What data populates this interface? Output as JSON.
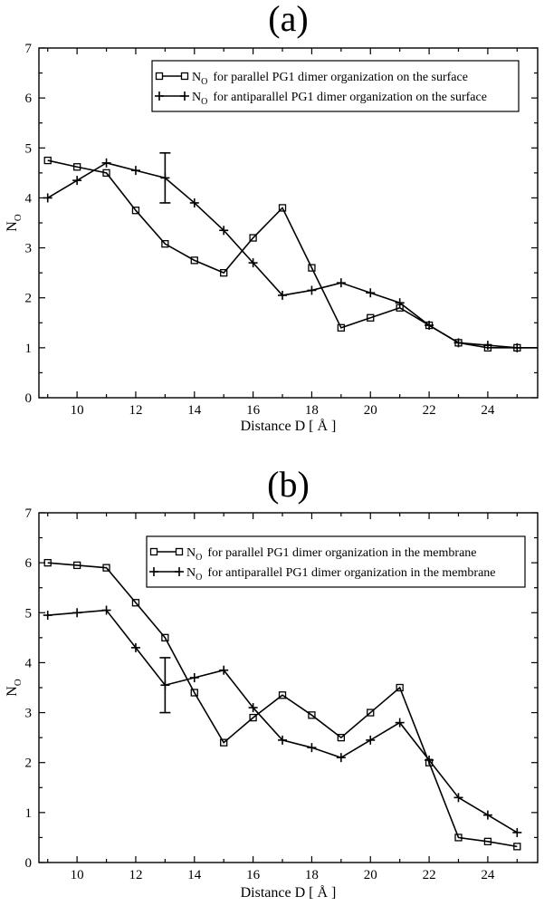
{
  "chart_data": [
    {
      "type": "line",
      "panel": "(a)",
      "xlabel": "Distance D [ Å ]",
      "ylabel": "NO",
      "ylabel_main": "N",
      "ylabel_sub": "O",
      "xlim": [
        8.7,
        25.7
      ],
      "ylim": [
        0,
        7
      ],
      "xticks": [
        10,
        12,
        14,
        16,
        18,
        20,
        22,
        24
      ],
      "yticks": [
        0,
        1,
        2,
        3,
        4,
        5,
        6,
        7
      ],
      "legend_position": "top-right",
      "series": [
        {
          "name": "NO for parallel PG1 dimer organization on the surface",
          "label_main": "N",
          "label_sub": "O",
          "label_rest": "for parallel PG1 dimer organization on the surface",
          "marker": "square",
          "x": [
            9,
            10,
            11,
            12,
            13,
            14,
            15,
            16,
            17,
            18,
            19,
            20,
            21,
            22,
            23,
            24,
            25,
            25.7
          ],
          "y": [
            4.75,
            4.62,
            4.5,
            3.75,
            3.08,
            2.75,
            2.5,
            3.2,
            3.8,
            2.6,
            1.4,
            1.6,
            1.8,
            1.45,
            1.1,
            1.0,
            1.0,
            1.0
          ],
          "marked": [
            true,
            true,
            true,
            true,
            true,
            true,
            true,
            true,
            true,
            true,
            true,
            true,
            true,
            true,
            true,
            true,
            true,
            false
          ]
        },
        {
          "name": "NO for antiparallel PG1 dimer organization on the surface",
          "label_main": "N",
          "label_sub": "O",
          "label_rest": "for antiparallel PG1 dimer organization on the surface",
          "marker": "plus",
          "x": [
            9,
            10,
            11,
            12,
            13,
            14,
            15,
            16,
            17,
            18,
            19,
            20,
            21,
            22,
            23,
            24,
            25,
            25.7
          ],
          "y": [
            4.0,
            4.35,
            4.7,
            4.55,
            4.4,
            3.9,
            3.35,
            2.7,
            2.05,
            2.15,
            2.3,
            2.1,
            1.9,
            1.45,
            1.1,
            1.05,
            1.0,
            1.0
          ],
          "marked": [
            true,
            true,
            true,
            true,
            true,
            true,
            true,
            true,
            true,
            true,
            true,
            true,
            true,
            true,
            true,
            true,
            true,
            false
          ]
        }
      ],
      "error_bar": {
        "x": 13,
        "y": 4.4,
        "low": 3.9,
        "high": 4.9
      }
    },
    {
      "type": "line",
      "panel": "(b)",
      "xlabel": "Distance D [ Å ]",
      "ylabel": "NO",
      "ylabel_main": "N",
      "ylabel_sub": "O",
      "xlim": [
        8.7,
        25.7
      ],
      "ylim": [
        0,
        7
      ],
      "xticks": [
        10,
        12,
        14,
        16,
        18,
        20,
        22,
        24
      ],
      "yticks": [
        0,
        1,
        2,
        3,
        4,
        5,
        6,
        7
      ],
      "legend_position": "top-right",
      "series": [
        {
          "name": "NO for parallel PG1 dimer organization in the membrane",
          "label_main": "N",
          "label_sub": "O",
          "label_rest": "for parallel PG1 dimer organization in the membrane",
          "marker": "square",
          "x": [
            9,
            10,
            11,
            12,
            13,
            14,
            15,
            16,
            17,
            18,
            19,
            20,
            21,
            22,
            23,
            24,
            25
          ],
          "y": [
            6.0,
            5.95,
            5.9,
            5.2,
            4.5,
            3.4,
            2.4,
            2.9,
            3.35,
            2.95,
            2.5,
            3.0,
            3.5,
            2.0,
            0.5,
            0.42,
            0.32
          ],
          "marked": [
            true,
            true,
            true,
            true,
            true,
            true,
            true,
            true,
            true,
            true,
            true,
            true,
            true,
            true,
            true,
            true,
            true
          ]
        },
        {
          "name": "NO for antiparallel PG1 dimer organization in the membrane",
          "label_main": "N",
          "label_sub": "O",
          "label_rest": "for antiparallel PG1 dimer organization in the membrane",
          "marker": "plus",
          "x": [
            9,
            10,
            11,
            12,
            13,
            14,
            15,
            16,
            17,
            18,
            19,
            20,
            21,
            22,
            23,
            24,
            25
          ],
          "y": [
            4.95,
            5.0,
            5.05,
            4.3,
            3.55,
            3.7,
            3.85,
            3.1,
            2.45,
            2.3,
            2.1,
            2.45,
            2.8,
            2.05,
            1.3,
            0.95,
            0.6
          ],
          "marked": [
            true,
            true,
            true,
            true,
            true,
            true,
            true,
            true,
            true,
            true,
            true,
            true,
            true,
            true,
            true,
            true,
            true
          ]
        }
      ],
      "error_bar": {
        "x": 13,
        "y": 3.55,
        "low": 3.0,
        "high": 4.1
      }
    }
  ]
}
